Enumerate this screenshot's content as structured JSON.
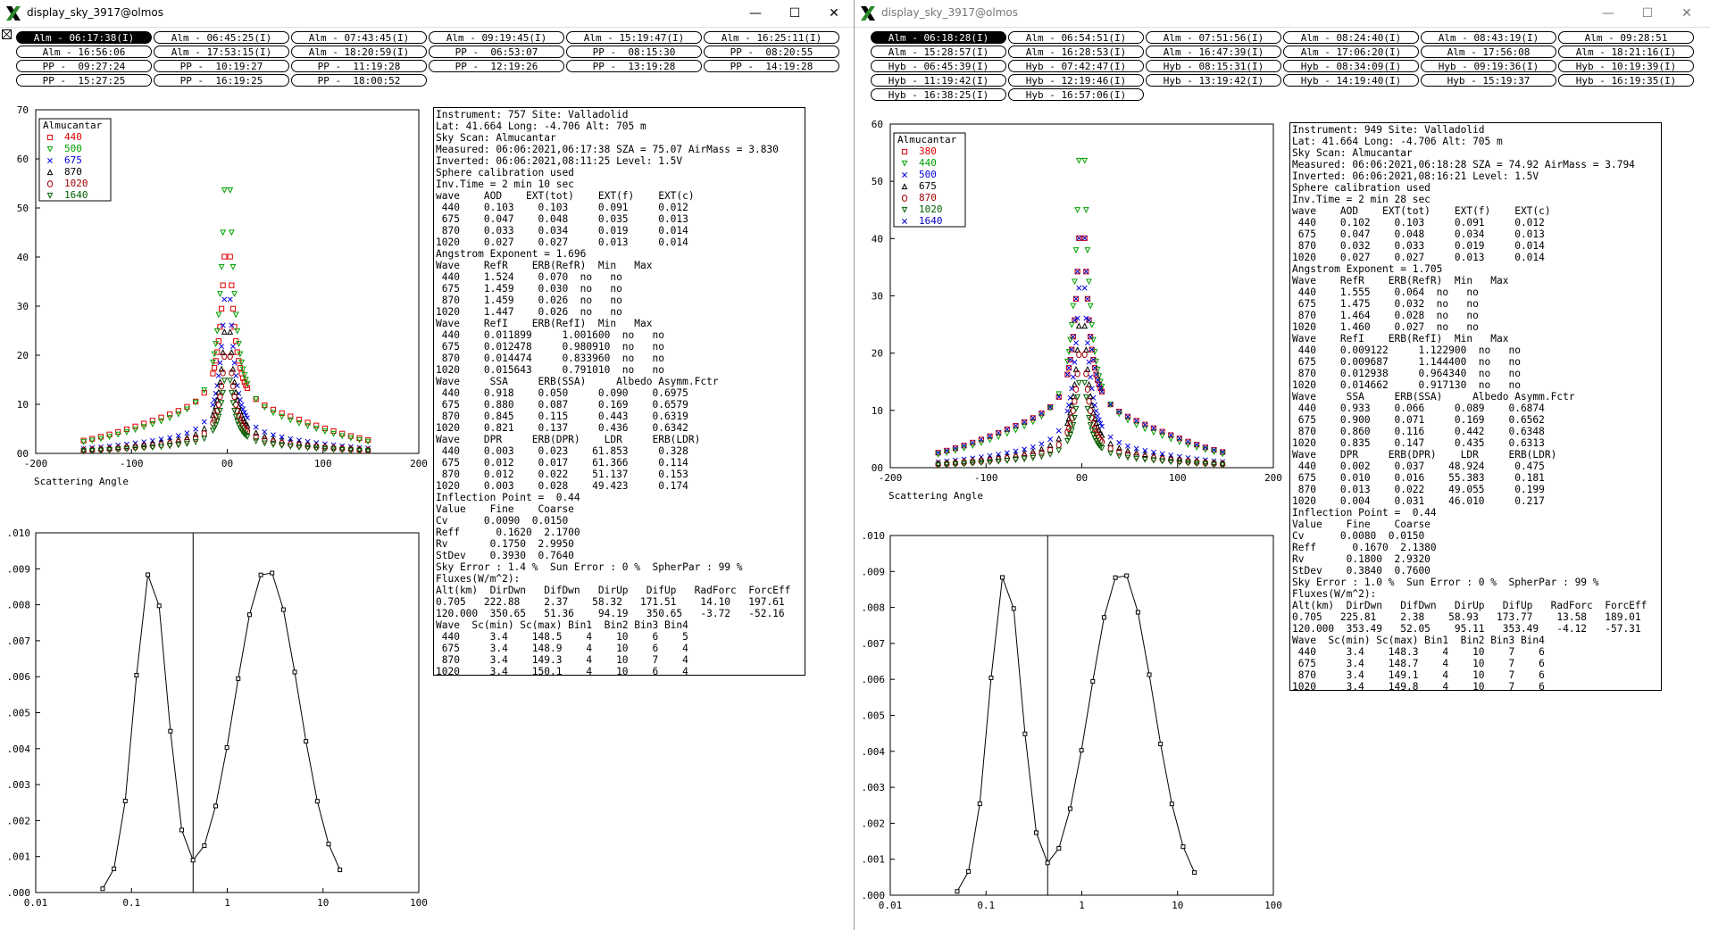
{
  "windows": [
    {
      "title": "display_sky_3917@olmos",
      "controls": {
        "minimize": "—",
        "maximize": "☐",
        "close": "✕"
      },
      "tabs": [
        "Alm - 06:17:38(I)",
        "Alm - 06:45:25(I)",
        "Alm - 07:43:45(I)",
        "Alm - 09:19:45(I)",
        "Alm - 15:19:47(I)",
        "Alm - 16:25:11(I)",
        "Alm - 16:56:06",
        "Alm - 17:53:15(I)",
        "Alm - 18:20:59(I)",
        "PP -  06:53:07",
        "PP -  08:15:30",
        "PP -  08:20:55",
        "PP -  09:27:24",
        "PP -  10:19:27",
        "PP -  11:19:28",
        "PP -  12:19:26",
        "PP -  13:19:28",
        "PP -  14:19:28",
        "PP -  15:27:25",
        "PP -  16:19:25",
        "PP -  18:00:52"
      ],
      "selected_tab": 0,
      "almucantar_plot": {
        "legend_title": "Almucantar",
        "legend": [
          {
            "label": "440",
            "color": "#e00000",
            "marker": "square"
          },
          {
            "label": "500",
            "color": "#00a000",
            "marker": "tri-down"
          },
          {
            "label": "675",
            "color": "#0000e0",
            "marker": "x"
          },
          {
            "label": "870",
            "color": "#000000",
            "marker": "tri-up"
          },
          {
            "label": "1020",
            "color": "#a00000",
            "marker": "circle"
          },
          {
            "label": "1640",
            "color": "#006000",
            "marker": "tri-down"
          }
        ],
        "xlabel": "Scattering Angle",
        "xticks": [
          "-200",
          "-100",
          "00",
          "100",
          "200"
        ],
        "yticks": [
          "00",
          "10",
          "20",
          "30",
          "40",
          "50",
          "60",
          "70"
        ]
      },
      "size_dist_plot": {
        "xticks": [
          "0.01",
          "0.1",
          "1",
          "10",
          "100"
        ],
        "yticks": [
          ".000",
          ".001",
          ".002",
          ".003",
          ".004",
          ".005",
          ".006",
          ".007",
          ".008",
          ".009",
          ".010"
        ]
      },
      "info_lines": [
        "Instrument: 757 Site: Valladolid",
        "Lat: 41.664 Long: -4.706 Alt: 705 m",
        "Sky Scan: Almucantar",
        "Measured: 06:06:2021,06:17:38 SZA = 75.07 AirMass = 3.830",
        "Inverted: 06:06:2021,08:11:25 Level: 1.5V",
        "Sphere calibration used",
        "Inv.Time = 2 min 10 sec",
        "wave    AOD    EXT(tot)    EXT(f)    EXT(c)",
        " 440    0.103    0.103     0.091     0.012",
        " 675    0.047    0.048     0.035     0.013",
        " 870    0.033    0.034     0.019     0.014",
        "1020    0.027    0.027     0.013     0.014",
        "Angstrom Exponent = 1.696",
        "Wave    RefR    ERB(RefR)  Min   Max",
        " 440    1.524    0.070  no   no",
        " 675    1.459    0.030  no   no",
        " 870    1.459    0.026  no   no",
        "1020    1.447    0.026  no   no",
        "Wave    RefI    ERB(RefI)  Min   Max",
        " 440    0.011899     1.001600  no   no",
        " 675    0.012478     0.980910  no   no",
        " 870    0.014474     0.833960  no   no",
        "1020    0.015643     0.791010  no   no",
        "Wave     SSA     ERB(SSA)     Albedo Asymm.Fctr",
        " 440    0.918    0.050     0.090    0.6975",
        " 675    0.880    0.087     0.169    0.6579",
        " 870    0.845    0.115     0.443    0.6319",
        "1020    0.821    0.137     0.436    0.6342",
        "Wave    DPR     ERB(DPR)    LDR     ERB(LDR)",
        " 440    0.003    0.023    61.853     0.328",
        " 675    0.012    0.017    61.366     0.114",
        " 870    0.012    0.022    51.137     0.153",
        "1020    0.003    0.028    49.423     0.174",
        "Inflection Point =  0.44",
        "Value    Fine    Coarse",
        "Cv      0.0090  0.0150",
        "Reff      0.1620  2.1700",
        "Rv       0.1750  2.9950",
        "StDev    0.3930  0.7640",
        "Sky Error : 1.4 %  Sun Error : 0 %  SpherPar : 99 %",
        "Fluxes(W/m^2):",
        "Alt(km)  DirDwn   DifDwn   DirUp   DifUp   RadForc  ForcEff",
        "0.705   222.88    2.37    58.32   171.51    14.10   197.61",
        "120.000  350.65   51.36    94.19   350.65   -3.72   -52.16",
        "Wave  Sc(min) Sc(max) Bin1  Bin2 Bin3 Bin4",
        " 440     3.4    148.5    4    10    6    5",
        " 675     3.4    148.9    4    10    6    4",
        " 870     3.4    149.3    4    10    7    4",
        "1020     3.4    150.1    4    10    6    4"
      ]
    },
    {
      "title": "display_sky_3917@olmos",
      "controls": {
        "minimize": "—",
        "maximize": "☐",
        "close": "✕"
      },
      "tabs": [
        "Alm - 06:18:28(I)",
        "Alm - 06:54:51(I)",
        "Alm - 07:51:56(I)",
        "Alm - 08:24:40(I)",
        "Alm - 08:43:19(I)",
        "Alm - 09:28:51",
        "Alm - 15:28:57(I)",
        "Alm - 16:28:53(I)",
        "Alm - 16:47:39(I)",
        "Alm - 17:06:20(I)",
        "Alm - 17:56:08",
        "Alm - 18:21:16(I)",
        "Hyb - 06:45:39(I)",
        "Hyb - 07:42:47(I)",
        "Hyb - 08:15:31(I)",
        "Hyb - 08:34:09(I)",
        "Hyb - 09:19:36(I)",
        "Hyb - 10:19:39(I)",
        "Hyb - 11:19:42(I)",
        "Hyb - 12:19:46(I)",
        "Hyb - 13:19:42(I)",
        "Hyb - 14:19:40(I)",
        "Hyb - 15:19:37",
        "Hyb - 16:19:35(I)",
        "Hyb - 16:38:25(I)",
        "Hyb - 16:57:06(I)"
      ],
      "selected_tab": 0,
      "almucantar_plot": {
        "legend_title": "Almucantar",
        "legend": [
          {
            "label": "380",
            "color": "#e00000",
            "marker": "square"
          },
          {
            "label": "440",
            "color": "#00a000",
            "marker": "tri-down"
          },
          {
            "label": "500",
            "color": "#0000e0",
            "marker": "x"
          },
          {
            "label": "675",
            "color": "#000000",
            "marker": "tri-up"
          },
          {
            "label": "870",
            "color": "#a00000",
            "marker": "circle"
          },
          {
            "label": "1020",
            "color": "#006000",
            "marker": "tri-down"
          },
          {
            "label": "1640",
            "color": "#0000c0",
            "marker": "x"
          }
        ],
        "xlabel": "Scattering Angle",
        "xticks": [
          "-200",
          "-100",
          "00",
          "100",
          "200"
        ],
        "yticks": [
          "00",
          "10",
          "20",
          "30",
          "40",
          "50",
          "60"
        ]
      },
      "size_dist_plot": {
        "xticks": [
          "0.01",
          "0.1",
          "1",
          "10",
          "100"
        ],
        "yticks": [
          ".000",
          ".001",
          ".002",
          ".003",
          ".004",
          ".005",
          ".006",
          ".007",
          ".008",
          ".009",
          ".010"
        ]
      },
      "info_lines": [
        "Instrument: 949 Site: Valladolid",
        "Lat: 41.664 Long: -4.706 Alt: 705 m",
        "Sky Scan: Almucantar",
        "Measured: 06:06:2021,06:18:28 SZA = 74.92 AirMass = 3.794",
        "Inverted: 06:06:2021,08:16:21 Level: 1.5V",
        "Sphere calibration used",
        "Inv.Time = 2 min 28 sec",
        "wave    AOD    EXT(tot)    EXT(f)    EXT(c)",
        " 440    0.102    0.103     0.091     0.012",
        " 675    0.047    0.048     0.034     0.013",
        " 870    0.032    0.033     0.019     0.014",
        "1020    0.027    0.027     0.013     0.014",
        "Angstrom Exponent = 1.705",
        "Wave    RefR    ERB(RefR)  Min   Max",
        " 440    1.555    0.064  no   no",
        " 675    1.475    0.032  no   no",
        " 870    1.464    0.028  no   no",
        "1020    1.460    0.027  no   no",
        "Wave    RefI    ERB(RefI)  Min   Max",
        " 440    0.009122     1.122900  no   no",
        " 675    0.009687     1.144400  no   no",
        " 870    0.012938     0.964340  no   no",
        "1020    0.014662     0.917130  no   no",
        "Wave     SSA     ERB(SSA)     Albedo Asymm.Fctr",
        " 440    0.933    0.066     0.089    0.6874",
        " 675    0.900    0.071     0.169    0.6562",
        " 870    0.860    0.116     0.442    0.6348",
        "1020    0.835    0.147     0.435    0.6313",
        "Wave    DPR     ERB(DPR)    LDR     ERB(LDR)",
        " 440    0.002    0.037    48.924     0.475",
        " 675    0.010    0.016    55.383     0.181",
        " 870    0.013    0.022    49.055     0.199",
        "1020    0.004    0.031    46.010     0.217",
        "Inflection Point =  0.44",
        "Value    Fine    Coarse",
        "Cv      0.0080  0.0150",
        "Reff      0.1670  2.1380",
        "Rv       0.1800  2.9320",
        "StDev    0.3840  0.7600",
        "Sky Error : 1.0 %  Sun Error : 0 %  SpherPar : 99 %",
        "Fluxes(W/m^2):",
        "Alt(km)  DirDwn   DifDwn   DirUp   DifUp   RadForc  ForcEff",
        "0.705   225.81    2.38    58.93   173.77    13.58   189.01",
        "120.000  353.49   52.05    95.11   353.49   -4.12   -57.31",
        "Wave  Sc(min) Sc(max) Bin1  Bin2 Bin3 Bin4",
        " 440     3.4    148.3    4    10    7    6",
        " 675     3.4    148.7    4    10    7    6",
        " 870     3.4    149.1    4    10    7    6",
        "1020     3.4    149.8    4    10    7    6"
      ]
    }
  ]
}
